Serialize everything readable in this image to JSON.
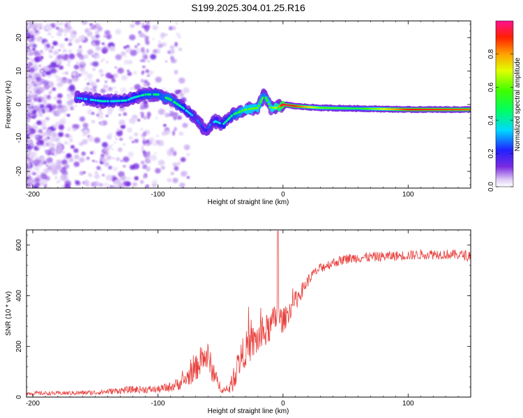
{
  "title": "S199.2025.304.01.25.R16",
  "chart_data": [
    {
      "type": "heatmap",
      "name": "spectrogram",
      "xlabel": "Height of straight line (km)",
      "ylabel": "Frequency (Hz)",
      "xlim": [
        -205,
        150
      ],
      "ylim": [
        -25,
        25
      ],
      "xticks": [
        -200,
        -100,
        0,
        100
      ],
      "yticks": [
        -20,
        -10,
        0,
        10,
        20
      ],
      "xtick_labels": [
        "-200",
        "-100",
        "0",
        "100"
      ],
      "ytick_labels": [
        "-20",
        "-10",
        "0",
        "10",
        "20"
      ],
      "colorbar": {
        "label": "Normalized spectral amplitude",
        "range": [
          0,
          1
        ],
        "ticks": [
          "0.0",
          "0.2",
          "0.4",
          "0.6",
          "0.8"
        ],
        "tick_values": [
          0,
          0.2,
          0.4,
          0.6,
          0.8
        ]
      },
      "ridge": {
        "x": [
          -165,
          -155,
          -145,
          -135,
          -125,
          -120,
          -110,
          -100,
          -90,
          -80,
          -70,
          -62,
          -58,
          -54,
          -48,
          -40,
          -30,
          -20,
          -15,
          -10,
          -5,
          0,
          10,
          30,
          60,
          100,
          150
        ],
        "y": [
          2,
          1.5,
          1,
          1,
          1.2,
          2,
          3,
          3,
          1.5,
          -1,
          -4,
          -8,
          -6,
          -5,
          -6,
          -3,
          -1.5,
          -1,
          3,
          -1,
          -1,
          0,
          -0.5,
          -1,
          -1.2,
          -1.5,
          -1.5
        ],
        "amplitude": [
          0.3,
          0.35,
          0.4,
          0.35,
          0.4,
          0.35,
          0.45,
          0.45,
          0.5,
          0.4,
          0.3,
          0.2,
          0.3,
          0.35,
          0.4,
          0.45,
          0.6,
          0.6,
          0.5,
          0.6,
          0.7,
          0.95,
          0.9,
          0.6,
          0.5,
          0.9,
          0.85
        ]
      }
    },
    {
      "type": "line",
      "name": "snr",
      "xlabel": "Height of straight line (km)",
      "ylabel": "SNR (10 * v/v)",
      "xlim": [
        -205,
        150
      ],
      "ylim": [
        0,
        660
      ],
      "xticks": [
        -200,
        -100,
        0,
        100
      ],
      "yticks": [
        0,
        200,
        400,
        600
      ],
      "xtick_labels": [
        "-200",
        "-100",
        "0",
        "100"
      ],
      "ytick_labels": [
        "0",
        "200",
        "400",
        "600"
      ],
      "color": "#e8403c",
      "envelope": {
        "x": [
          -205,
          -180,
          -150,
          -120,
          -100,
          -90,
          -80,
          -70,
          -65,
          -60,
          -55,
          -50,
          -45,
          -40,
          -35,
          -30,
          -25,
          -20,
          -15,
          -10,
          -5,
          0,
          5,
          10,
          15,
          20,
          25,
          30,
          40,
          50,
          60,
          80,
          100,
          120,
          150
        ],
        "y": [
          15,
          15,
          18,
          30,
          30,
          40,
          60,
          110,
          150,
          160,
          80,
          40,
          20,
          60,
          140,
          190,
          210,
          230,
          250,
          280,
          320,
          300,
          340,
          380,
          420,
          460,
          490,
          510,
          530,
          545,
          550,
          555,
          560,
          565,
          560
        ],
        "noise": [
          8,
          8,
          10,
          15,
          15,
          20,
          30,
          50,
          60,
          60,
          40,
          20,
          15,
          40,
          60,
          70,
          70,
          70,
          70,
          60,
          60,
          50,
          40,
          40,
          30,
          25,
          20,
          20,
          20,
          20,
          20,
          20,
          20,
          20,
          20
        ]
      },
      "spike": {
        "x": -4,
        "y": 655
      }
    }
  ]
}
